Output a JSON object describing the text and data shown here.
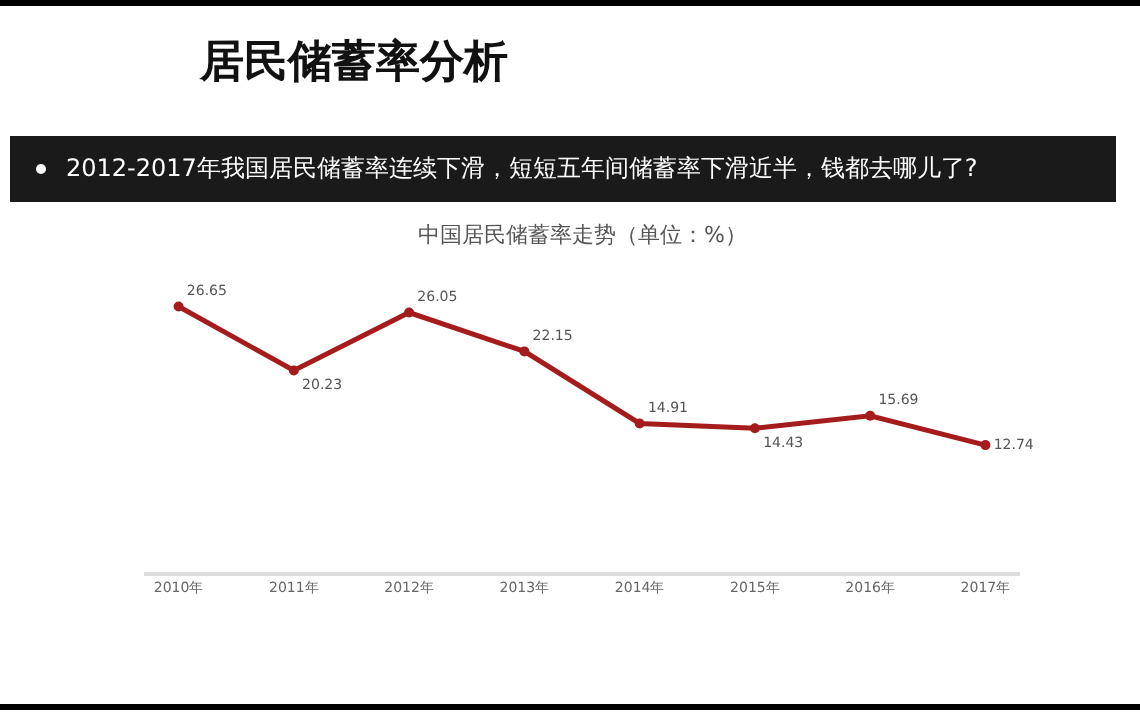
{
  "chart_data": {
    "type": "line",
    "title": "居民储蓄率分析",
    "subtitle": "2012-2017年我国居民储蓄率连续下滑，短短五年间储蓄率下滑近半，钱都去哪儿了?",
    "annotations": [
      "中国居民储蓄率走势（单位：%）"
    ],
    "categories": [
      "2010年",
      "2011年",
      "2012年",
      "2013年",
      "2014年",
      "2015年",
      "2016年",
      "2017年"
    ],
    "series": [
      {
        "color": "#a51c1c",
        "values": [
          26.65,
          20.23,
          26.05,
          22.15,
          14.91,
          14.43,
          15.69,
          12.74
        ]
      }
    ],
    "data_labels": true,
    "marker": "circle",
    "line_style": "solid",
    "grid": false
  }
}
